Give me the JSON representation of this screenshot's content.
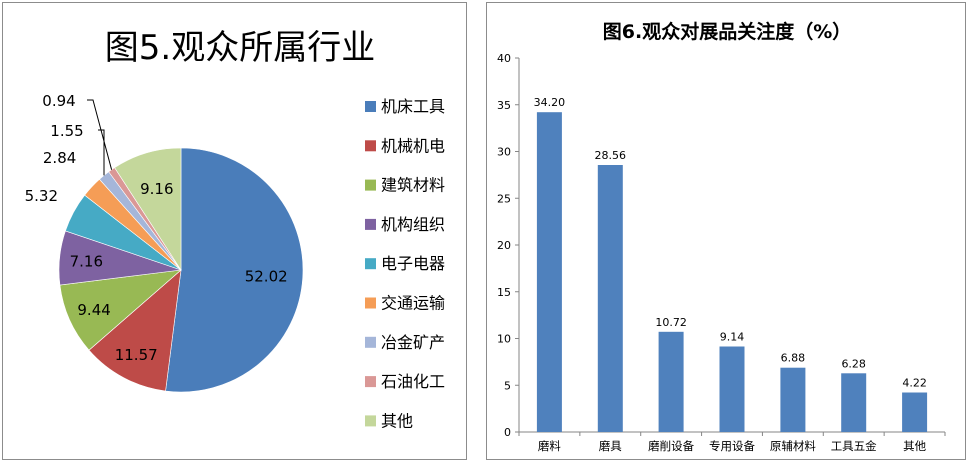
{
  "chart_data": [
    {
      "type": "pie",
      "title": "图5.观众所属行业",
      "categories": [
        "机床工具",
        "机械机电",
        "建筑材料",
        "机构组织",
        "电子电器",
        "交通运输",
        "冶金矿产",
        "石油化工",
        "其他"
      ],
      "values": [
        52.02,
        11.57,
        9.44,
        7.16,
        5.32,
        2.84,
        1.55,
        0.94,
        9.16
      ],
      "value_labels": [
        "52.02",
        "11.57",
        "9.44",
        "7.16",
        "5.32",
        "2.84",
        "1.55",
        "0.94",
        "9.16"
      ],
      "colors": [
        "#4A7DBA",
        "#BE4B48",
        "#98B954",
        "#7E62A1",
        "#46AAC5",
        "#F59D56",
        "#A5B6D9",
        "#DA9896",
        "#C4D79B"
      ],
      "legend_position": "right"
    },
    {
      "type": "bar",
      "title": "图6.观众对展品关注度（%）",
      "categories": [
        "磨料",
        "磨具",
        "磨削设备",
        "专用设备",
        "原辅材料",
        "工具五金",
        "其他"
      ],
      "values": [
        34.2,
        28.56,
        10.72,
        9.14,
        6.88,
        6.28,
        4.22
      ],
      "value_labels": [
        "34.20",
        "28.56",
        "10.72",
        "9.14",
        "6.88",
        "6.28",
        "4.22"
      ],
      "ylim": [
        0,
        40
      ],
      "yticks": [
        "0",
        "5",
        "10",
        "15",
        "20",
        "25",
        "30",
        "35",
        "40"
      ],
      "grid": false,
      "bar_color": "#4F81BD"
    }
  ]
}
